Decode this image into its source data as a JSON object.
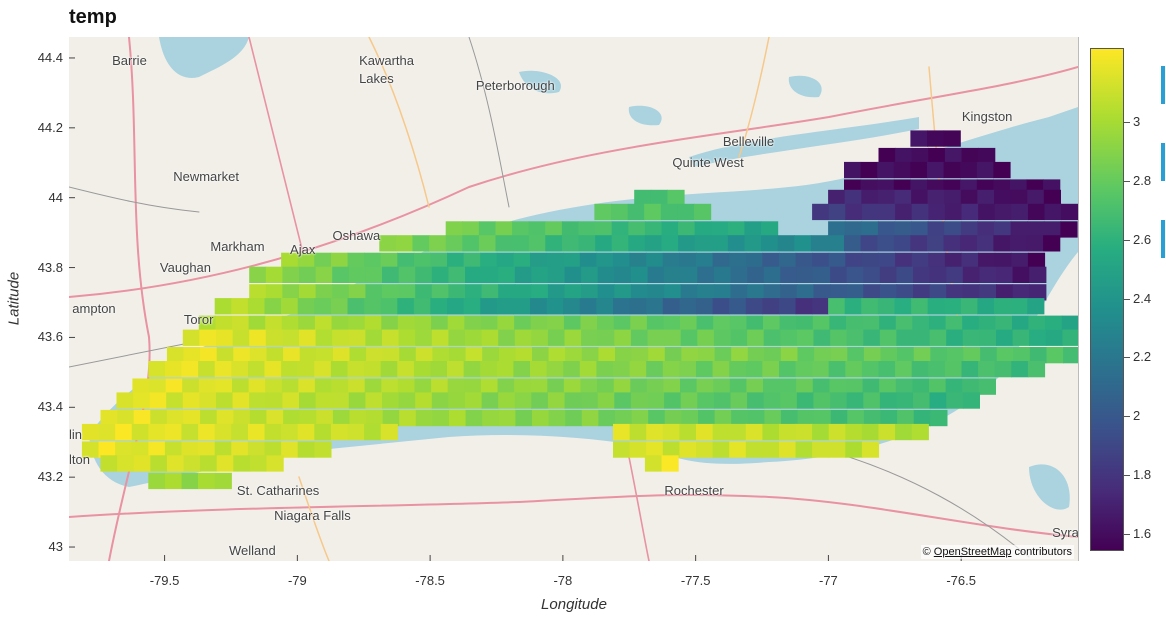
{
  "title": "temp",
  "axes": {
    "xlabel": "Longitude",
    "ylabel": "Latitude",
    "xlim": [
      -79.86,
      -76.06
    ],
    "ylim": [
      42.96,
      44.46
    ],
    "xticks": [
      "-79.5",
      "-79",
      "-78.5",
      "-78",
      "-77.5",
      "-77",
      "-76.5"
    ],
    "yticks": [
      "43",
      "43.2",
      "43.4",
      "43.6",
      "43.8",
      "44",
      "44.2",
      "44.4"
    ]
  },
  "colorbar": {
    "colormap": "viridis",
    "range": [
      1.55,
      3.25
    ],
    "ticks": [
      "1.6",
      "1.8",
      "2",
      "2.2",
      "2.4",
      "2.6",
      "2.8",
      "3"
    ]
  },
  "attribution": {
    "prefix": "©",
    "link": "OpenStreetMap",
    "suffix": "contributors"
  },
  "places": [
    {
      "name": "Barrie",
      "lon": -79.69,
      "lat": 44.39
    },
    {
      "name": "Kawartha",
      "lon": -78.76,
      "lat": 44.39
    },
    {
      "name": "Lakes",
      "lon": -78.76,
      "lat": 44.34
    },
    {
      "name": "Peterborough",
      "lon": -78.32,
      "lat": 44.32
    },
    {
      "name": "Kingston",
      "lon": -76.49,
      "lat": 44.23
    },
    {
      "name": "Belleville",
      "lon": -77.39,
      "lat": 44.16
    },
    {
      "name": "Quinte West",
      "lon": -77.58,
      "lat": 44.1
    },
    {
      "name": "Newmarket",
      "lon": -79.46,
      "lat": 44.06
    },
    {
      "name": "Oshawa",
      "lon": -78.86,
      "lat": 43.89
    },
    {
      "name": "Markham",
      "lon": -79.32,
      "lat": 43.86
    },
    {
      "name": "Ajax",
      "lon": -79.02,
      "lat": 43.85
    },
    {
      "name": "Vaughan",
      "lon": -79.51,
      "lat": 43.8
    },
    {
      "name": "ampton",
      "lon": -79.84,
      "lat": 43.68
    },
    {
      "name": "Toror",
      "lon": -79.42,
      "lat": 43.65
    },
    {
      "name": "lin",
      "lon": -79.86,
      "lat": 43.32
    },
    {
      "name": "lton",
      "lon": -79.86,
      "lat": 43.25
    },
    {
      "name": "St. Catharines",
      "lon": -79.22,
      "lat": 43.16
    },
    {
      "name": "Rochester",
      "lon": -77.61,
      "lat": 43.16
    },
    {
      "name": "Niagara Falls",
      "lon": -79.08,
      "lat": 43.09
    },
    {
      "name": "Syracuse",
      "lon": -76.15,
      "lat": 43.04
    },
    {
      "name": "Welland",
      "lon": -79.25,
      "lat": 42.99
    }
  ],
  "chart_data": {
    "type": "heatmap",
    "title": "temp",
    "xlabel": "Longitude",
    "ylabel": "Latitude",
    "cell_size_deg": [
      0.0625,
      0.045
    ],
    "colormap": "viridis",
    "value_range": [
      1.55,
      3.25
    ],
    "bands": [
      {
        "lat": 44.17,
        "segments": [
          {
            "lon": [
              -76.66,
              -76.56
            ],
            "v": [
              1.6,
              1.6
            ]
          }
        ]
      },
      {
        "lat": 44.12,
        "segments": [
          {
            "lon": [
              -76.78,
              -76.4
            ],
            "v": [
              1.6,
              1.6
            ]
          }
        ]
      },
      {
        "lat": 44.08,
        "segments": [
          {
            "lon": [
              -76.91,
              -76.36
            ],
            "v": [
              1.6,
              1.6
            ]
          }
        ]
      },
      {
        "lat": 44.03,
        "segments": [
          {
            "lon": [
              -76.91,
              -76.16
            ],
            "v": [
              1.6,
              1.6
            ]
          }
        ]
      },
      {
        "lat": 44.0,
        "segments": [
          {
            "lon": [
              -77.7,
              -77.6
            ],
            "v": [
              2.75,
              2.75
            ]
          },
          {
            "lon": [
              -76.97,
              -76.16
            ],
            "v": [
              1.75,
              1.6
            ]
          }
        ]
      },
      {
        "lat": 43.96,
        "segments": [
          {
            "lon": [
              -77.85,
              -77.48
            ],
            "v": [
              2.8,
              2.75
            ]
          },
          {
            "lon": [
              -77.03,
              -76.11
            ],
            "v": [
              1.85,
              1.6
            ]
          }
        ]
      },
      {
        "lat": 43.91,
        "segments": [
          {
            "lon": [
              -78.41,
              -77.23
            ],
            "v": [
              2.9,
              2.55
            ]
          },
          {
            "lon": [
              -76.97,
              -76.11
            ],
            "v": [
              2.2,
              1.6
            ]
          }
        ]
      },
      {
        "lat": 43.87,
        "segments": [
          {
            "lon": [
              -78.66,
              -76.97
            ],
            "v": [
              2.95,
              2.3
            ]
          },
          {
            "lon": [
              -76.91,
              -76.19
            ],
            "v": [
              2.0,
              1.6
            ]
          }
        ]
      },
      {
        "lat": 43.82,
        "segments": [
          {
            "lon": [
              -79.03,
              -76.19
            ],
            "v": [
              3.0,
              1.6
            ]
          }
        ]
      },
      {
        "lat": 43.78,
        "segments": [
          {
            "lon": [
              -79.15,
              -76.19
            ],
            "v": [
              3.0,
              1.65
            ]
          }
        ]
      },
      {
        "lat": 43.73,
        "segments": [
          {
            "lon": [
              -79.15,
              -76.19
            ],
            "v": [
              3.05,
              1.7
            ]
          }
        ]
      },
      {
        "lat": 43.69,
        "segments": [
          {
            "lon": [
              -79.28,
              -77.04
            ],
            "v": [
              3.1,
              1.8
            ]
          },
          {
            "lon": [
              -76.97,
              -76.19
            ],
            "v": [
              2.7,
              2.6
            ]
          }
        ]
      },
      {
        "lat": 43.64,
        "segments": [
          {
            "lon": [
              -79.34,
              -76.09
            ],
            "v": [
              3.1,
              2.6
            ]
          }
        ]
      },
      {
        "lat": 43.6,
        "segments": [
          {
            "lon": [
              -79.4,
              -76.09
            ],
            "v": [
              3.2,
              2.6
            ]
          }
        ]
      },
      {
        "lat": 43.55,
        "segments": [
          {
            "lon": [
              -79.46,
              -76.09
            ],
            "v": [
              3.2,
              2.75
            ]
          }
        ]
      },
      {
        "lat": 43.51,
        "segments": [
          {
            "lon": [
              -79.53,
              -76.21
            ],
            "v": [
              3.2,
              2.7
            ]
          }
        ]
      },
      {
        "lat": 43.46,
        "segments": [
          {
            "lon": [
              -79.59,
              -76.4
            ],
            "v": [
              3.2,
              2.7
            ]
          }
        ]
      },
      {
        "lat": 43.42,
        "segments": [
          {
            "lon": [
              -79.65,
              -76.46
            ],
            "v": [
              3.2,
              2.65
            ]
          }
        ]
      },
      {
        "lat": 43.37,
        "segments": [
          {
            "lon": [
              -79.71,
              -76.58
            ],
            "v": [
              3.2,
              2.7
            ]
          }
        ]
      },
      {
        "lat": 43.33,
        "segments": [
          {
            "lon": [
              -79.78,
              -78.66
            ],
            "v": [
              3.2,
              3.1
            ]
          },
          {
            "lon": [
              -77.78,
              -76.66
            ],
            "v": [
              3.15,
              3.05
            ]
          }
        ]
      },
      {
        "lat": 43.28,
        "segments": [
          {
            "lon": [
              -79.78,
              -78.91
            ],
            "v": [
              3.2,
              3.1
            ]
          },
          {
            "lon": [
              -77.78,
              -76.85
            ],
            "v": [
              3.15,
              3.1
            ]
          }
        ]
      },
      {
        "lat": 43.24,
        "segments": [
          {
            "lon": [
              -79.71,
              -79.09
            ],
            "v": [
              3.15,
              3.1
            ]
          },
          {
            "lon": [
              -77.66,
              -77.6
            ],
            "v": [
              3.2,
              3.2
            ]
          }
        ]
      },
      {
        "lat": 43.19,
        "segments": [
          {
            "lon": [
              -79.53,
              -79.28
            ],
            "v": [
              3.0,
              3.0
            ]
          }
        ]
      }
    ]
  }
}
